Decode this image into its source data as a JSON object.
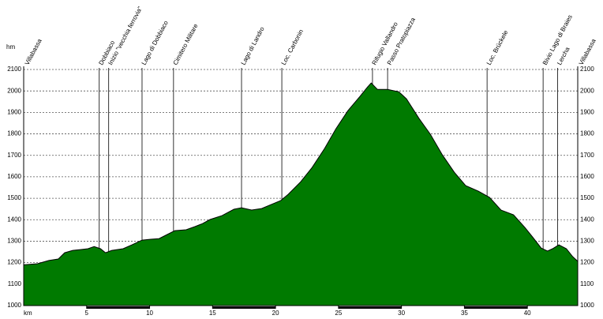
{
  "chart_data": {
    "type": "area",
    "y_unit": "hm",
    "x_unit": "km",
    "color": "#007a00",
    "grid": true,
    "xlim": [
      0,
      44
    ],
    "ylim": [
      1000,
      2100
    ],
    "xticks": [
      5,
      10,
      15,
      20,
      25,
      30,
      35,
      40
    ],
    "yticks": [
      1000,
      1100,
      1200,
      1300,
      1400,
      1500,
      1600,
      1700,
      1800,
      1900,
      2000,
      2100
    ],
    "x": [
      0,
      1.1,
      2,
      2.75,
      3.25,
      3.9,
      4.5,
      5.1,
      5.6,
      6.1,
      6.5,
      7,
      7.9,
      8.6,
      9.4,
      10.1,
      10.75,
      11.4,
      12,
      12.9,
      13.6,
      14.2,
      14.8,
      15.75,
      16.7,
      17.3,
      18.1,
      18.9,
      19.5,
      20.4,
      21,
      22,
      22.9,
      23.9,
      24.8,
      25.75,
      26.7,
      27.3,
      27.6,
      28.1,
      28.9,
      29.8,
      30.4,
      31.4,
      32.3,
      33.25,
      34.2,
      35.1,
      36.1,
      37,
      37.9,
      38.9,
      39.8,
      40.4,
      41.1,
      41.6,
      42,
      42.5,
      43.1,
      43.6,
      44
    ],
    "values": [
      1190,
      1195,
      1210,
      1217,
      1246,
      1257,
      1261,
      1265,
      1275,
      1265,
      1246,
      1257,
      1265,
      1283,
      1305,
      1309,
      1312,
      1331,
      1349,
      1353,
      1368,
      1382,
      1401,
      1419,
      1449,
      1456,
      1445,
      1452,
      1467,
      1489,
      1518,
      1577,
      1643,
      1732,
      1824,
      1908,
      1974,
      2018,
      2037,
      2007,
      2007,
      1996,
      1963,
      1871,
      1798,
      1702,
      1621,
      1559,
      1533,
      1504,
      1445,
      1423,
      1364,
      1320,
      1268,
      1254,
      1265,
      1283,
      1265,
      1228,
      1206
    ],
    "waypoints": [
      {
        "name": "Villabassa",
        "km": 0
      },
      {
        "name": "Dobbiaco",
        "km": 6.0
      },
      {
        "name": "Inizio \"vecchia ferrovia\"",
        "km": 6.75
      },
      {
        "name": "Lago di Dobbiaco",
        "km": 9.4
      },
      {
        "name": "Cimitero Militare",
        "km": 11.9
      },
      {
        "name": "Lago di Landro",
        "km": 17.3
      },
      {
        "name": "Loc. Carbonin",
        "km": 20.5
      },
      {
        "name": "Rifugio Vallandro",
        "km": 27.7
      },
      {
        "name": "Passo Pratopiazza",
        "km": 28.9
      },
      {
        "name": "Loc. Brückele",
        "km": 36.8
      },
      {
        "name": "Bivio Lago di Braies",
        "km": 41.25
      },
      {
        "name": "Lercha",
        "km": 42.4
      },
      {
        "name": "Villabassa",
        "km": 44
      }
    ]
  }
}
